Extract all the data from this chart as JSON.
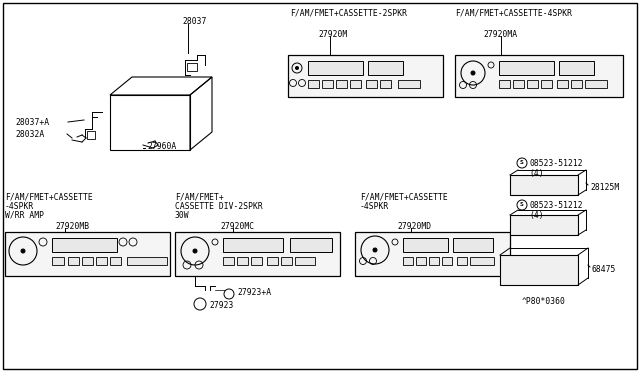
{
  "bg_color": "#ffffff",
  "line_color": "#000000",
  "fig_width": 6.4,
  "fig_height": 3.72,
  "dpi": 100,
  "parts": {
    "header_2spkr": "F/AM/FMET+CASSETTE-2SPKR",
    "header_4spkr": "F/AM/FMET+CASSETTE-4SPKR",
    "label_28037": "28037",
    "label_28037A": "28037+A",
    "label_28032A": "28032A",
    "label_27960A": "27960A",
    "label_27920M": "27920M",
    "label_27920MA": "27920MA",
    "label_27920MB": "27920MB",
    "label_27920MC": "27920MC",
    "label_27920MD": "27920MD",
    "label_27923A": "27923+A",
    "label_27923": "27923",
    "label_08523": "08523-51212",
    "label_4": "(4)",
    "label_28125M": "28125M",
    "label_68475": "68475",
    "label_footnote": "^P80*0360",
    "label_mb_desc1": "F/AM/FMET+CASSETTE",
    "label_mb_desc2": "-4SPKR",
    "label_mb_desc3": "W/RR AMP",
    "label_mc_desc1": "F/AM/FMET+",
    "label_mc_desc2": "CASSETTE DIV-2SPKR",
    "label_mc_desc3": "30W",
    "label_md_desc1": "F/AM/FMET+CASSETTE",
    "label_md_desc2": "-4SPKR"
  }
}
